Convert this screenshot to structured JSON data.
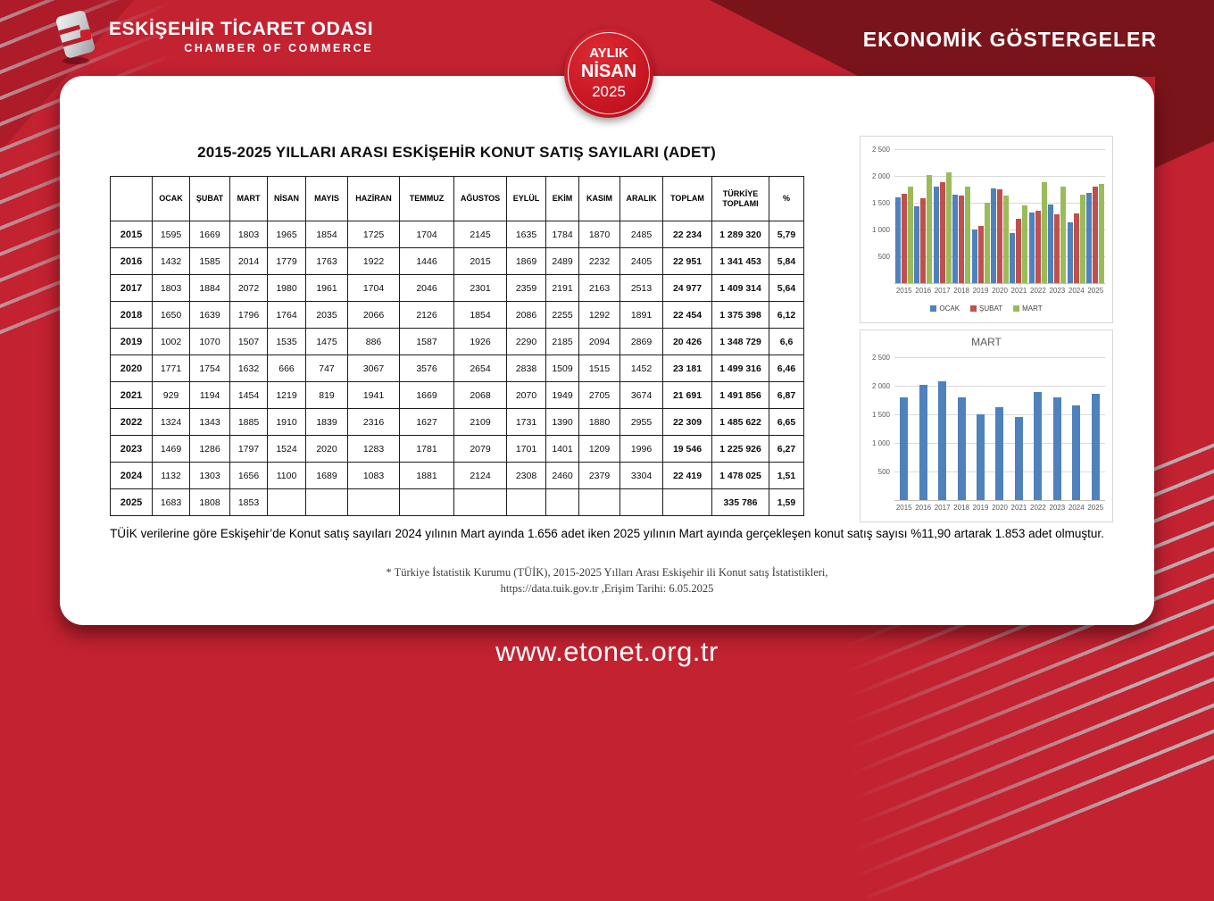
{
  "header": {
    "logo_title": "ESKİŞEHİR TİCARET ODASI",
    "logo_subtitle": "CHAMBER OF COMMERCE",
    "right_title": "EKONOMİK GÖSTERGELER",
    "badge": {
      "line1": "AYLIK",
      "line2": "NİSAN",
      "line3": "2025"
    }
  },
  "table": {
    "title": "2015-2025 YILLARI ARASI ESKİŞEHİR KONUT SATIŞ SAYILARI (ADET)",
    "columns": [
      "",
      "OCAK",
      "ŞUBAT",
      "MART",
      "NİSAN",
      "MAYIS",
      "HAZİRAN",
      "TEMMUZ",
      "AĞUSTOS",
      "EYLÜL",
      "EKİM",
      "KASIM",
      "ARALIK",
      "TOPLAM",
      "TÜRKİYE TOPLAMI",
      "%"
    ],
    "rows": [
      [
        "2015",
        "1595",
        "1669",
        "1803",
        "1965",
        "1854",
        "1725",
        "1704",
        "2145",
        "1635",
        "1784",
        "1870",
        "2485",
        "22 234",
        "1 289 320",
        "5,79"
      ],
      [
        "2016",
        "1432",
        "1585",
        "2014",
        "1779",
        "1763",
        "1922",
        "1446",
        "2015",
        "1869",
        "2489",
        "2232",
        "2405",
        "22 951",
        "1 341 453",
        "5,84"
      ],
      [
        "2017",
        "1803",
        "1884",
        "2072",
        "1980",
        "1961",
        "1704",
        "2046",
        "2301",
        "2359",
        "2191",
        "2163",
        "2513",
        "24 977",
        "1 409 314",
        "5,64"
      ],
      [
        "2018",
        "1650",
        "1639",
        "1796",
        "1764",
        "2035",
        "2066",
        "2126",
        "1854",
        "2086",
        "2255",
        "1292",
        "1891",
        "22 454",
        "1 375 398",
        "6,12"
      ],
      [
        "2019",
        "1002",
        "1070",
        "1507",
        "1535",
        "1475",
        "886",
        "1587",
        "1926",
        "2290",
        "2185",
        "2094",
        "2869",
        "20 426",
        "1 348 729",
        "6,6"
      ],
      [
        "2020",
        "1771",
        "1754",
        "1632",
        "666",
        "747",
        "3067",
        "3576",
        "2654",
        "2838",
        "1509",
        "1515",
        "1452",
        "23 181",
        "1 499 316",
        "6,46"
      ],
      [
        "2021",
        "929",
        "1194",
        "1454",
        "1219",
        "819",
        "1941",
        "1669",
        "2068",
        "2070",
        "1949",
        "2705",
        "3674",
        "21 691",
        "1 491 856",
        "6,87"
      ],
      [
        "2022",
        "1324",
        "1343",
        "1885",
        "1910",
        "1839",
        "2316",
        "1627",
        "2109",
        "1731",
        "1390",
        "1880",
        "2955",
        "22 309",
        "1 485 622",
        "6,65"
      ],
      [
        "2023",
        "1469",
        "1286",
        "1797",
        "1524",
        "2020",
        "1283",
        "1781",
        "2079",
        "1701",
        "1401",
        "1209",
        "1996",
        "19 546",
        "1 225 926",
        "6,27"
      ],
      [
        "2024",
        "1132",
        "1303",
        "1656",
        "1100",
        "1689",
        "1083",
        "1881",
        "2124",
        "2308",
        "2460",
        "2379",
        "3304",
        "22 419",
        "1 478 025",
        "1,51"
      ],
      [
        "2025",
        "1683",
        "1808",
        "1853",
        "",
        "",
        "",
        "",
        "",
        "",
        "",
        "",
        "",
        "",
        "335 786",
        "1,59"
      ]
    ]
  },
  "note": "TÜİK verilerine göre Eskişehir’de Konut satış sayıları 2024 yılının Mart ayında 1.656 adet iken 2025 yılının Mart ayında gerçekleşen konut satış sayısı %11,90 artarak 1.853 adet olmuştur.",
  "footnote_line1": "* Türkiye İstatistik Kurumu (TÜİK), 2015-2025 Yılları Arası Eskişehir ili Konut satış İstatistikleri,",
  "footnote_line2": "https://data.tuik.gov.tr ,Erişim Tarihi: 6.05.2025",
  "footer": {
    "url": "www.etonet.org.tr"
  },
  "colors": {
    "background_red": "#c32231",
    "dark_maroon": "#7a141b",
    "badge_red": "#ce1b26",
    "series_blue": "#4F81BD",
    "series_red": "#C0504D",
    "series_green": "#9BBB59"
  },
  "chart_data": [
    {
      "type": "bar",
      "title": "",
      "categories": [
        "2015",
        "2016",
        "2017",
        "2018",
        "2019",
        "2020",
        "2021",
        "2022",
        "2023",
        "2024",
        "2025"
      ],
      "series": [
        {
          "name": "OCAK",
          "color": "#4F81BD",
          "values": [
            1595,
            1432,
            1803,
            1650,
            1002,
            1771,
            929,
            1324,
            1469,
            1132,
            1683
          ]
        },
        {
          "name": "ŞUBAT",
          "color": "#C0504D",
          "values": [
            1669,
            1585,
            1884,
            1639,
            1070,
            1754,
            1194,
            1343,
            1286,
            1303,
            1808
          ]
        },
        {
          "name": "MART",
          "color": "#9BBB59",
          "values": [
            1803,
            2014,
            2072,
            1796,
            1507,
            1632,
            1454,
            1885,
            1797,
            1656,
            1853
          ]
        }
      ],
      "xlabel": "",
      "ylabel": "",
      "ylim": [
        0,
        2500
      ],
      "yticks": [
        500,
        1000,
        1500,
        2000,
        2500
      ],
      "ytick_labels": [
        "500",
        "1 000",
        "1 500",
        "2 000",
        "2 500"
      ],
      "grid": true,
      "legend_position": "bottom"
    },
    {
      "type": "bar",
      "title": "MART",
      "categories": [
        "2015",
        "2016",
        "2017",
        "2018",
        "2019",
        "2020",
        "2021",
        "2022",
        "2023",
        "2024",
        "2025"
      ],
      "series": [
        {
          "name": "MART",
          "color": "#4F81BD",
          "values": [
            1803,
            2014,
            2072,
            1796,
            1507,
            1632,
            1454,
            1885,
            1797,
            1656,
            1853
          ]
        }
      ],
      "xlabel": "",
      "ylabel": "",
      "ylim": [
        0,
        2500
      ],
      "yticks": [
        500,
        1000,
        1500,
        2000,
        2500
      ],
      "ytick_labels": [
        "500",
        "1 000",
        "1 500",
        "2 000",
        "2 500"
      ],
      "grid": true,
      "legend_position": "none"
    }
  ]
}
